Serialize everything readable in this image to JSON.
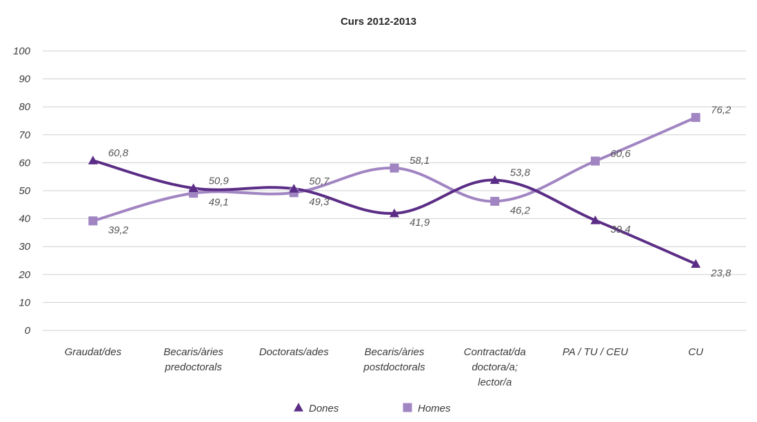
{
  "chart_data": {
    "type": "line",
    "title": "Curs 2012-2013",
    "categories": [
      [
        "Graudat/des"
      ],
      [
        "Becaris/àries",
        "predoctorals"
      ],
      [
        "Doctorats/ades"
      ],
      [
        "Becaris/àries",
        "postdoctorals"
      ],
      [
        "Contractat/da",
        "doctora/a;",
        "lector/a"
      ],
      [
        "PA / TU / CEU"
      ],
      [
        "CU"
      ]
    ],
    "ylim": [
      0,
      100
    ],
    "yticks": [
      0,
      10,
      20,
      30,
      40,
      50,
      60,
      70,
      80,
      90,
      100
    ],
    "grid": true,
    "legend_position": "bottom",
    "series": [
      {
        "name": "Dones",
        "marker": "triangle",
        "color": "#5b2d86",
        "values": [
          60.8,
          50.9,
          50.7,
          41.9,
          53.8,
          39.4,
          23.8
        ],
        "labels": [
          "60,8",
          "50,9",
          "50,7",
          "41,9",
          "53,8",
          "39,4",
          "23,8"
        ]
      },
      {
        "name": "Homes",
        "marker": "square",
        "color": "#a185c2",
        "values": [
          39.2,
          49.1,
          49.3,
          58.1,
          46.2,
          60.6,
          76.2
        ],
        "labels": [
          "39,2",
          "49,1",
          "49,3",
          "58,1",
          "46,2",
          "60,6",
          "76,2"
        ]
      }
    ]
  }
}
